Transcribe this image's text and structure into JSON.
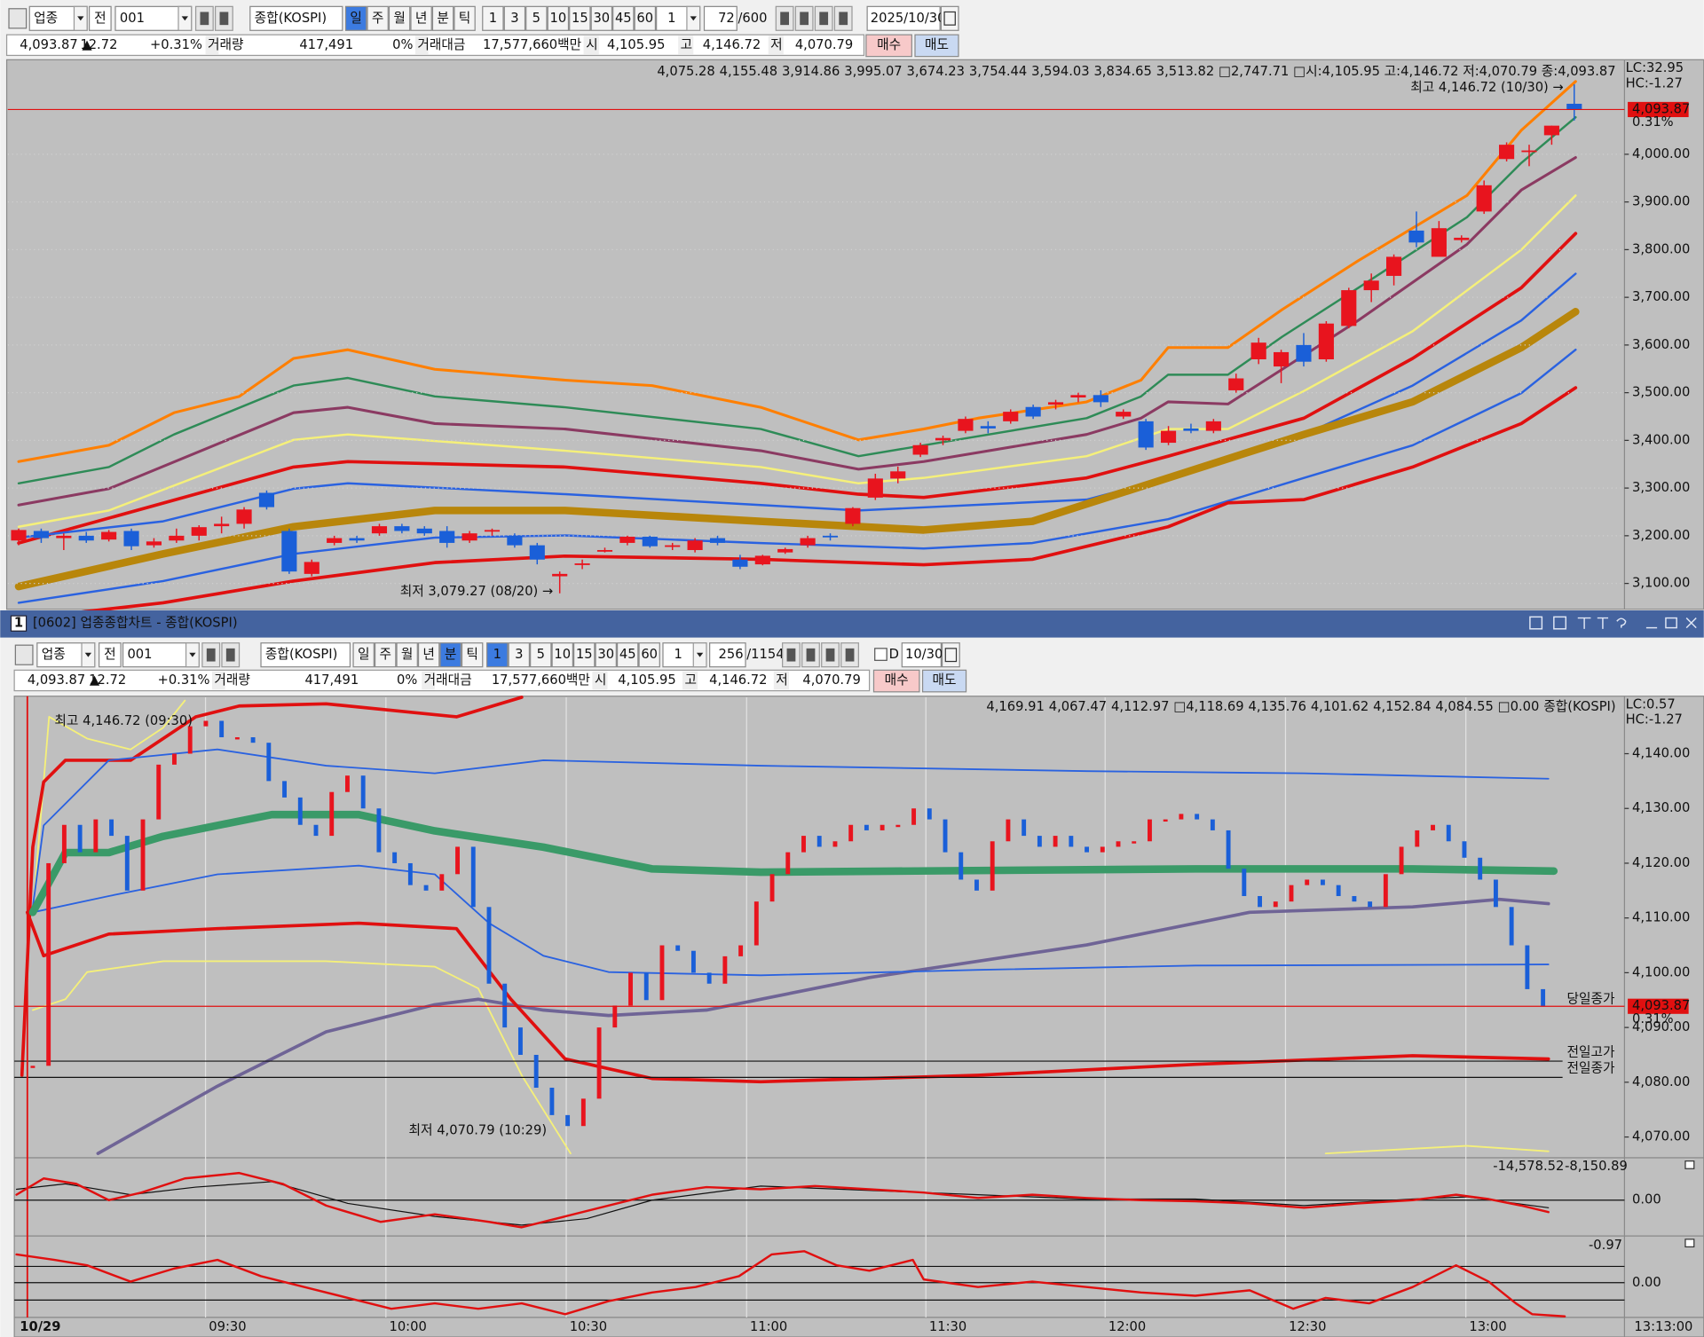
{
  "toolbar_top": {
    "market": "업종",
    "prev": "전",
    "code": "001",
    "name": "종합(KOSPI)",
    "periods": [
      "일",
      "주",
      "월",
      "년",
      "분",
      "틱"
    ],
    "intervals": [
      "1",
      "3",
      "5",
      "10",
      "15",
      "30",
      "45",
      "60"
    ],
    "multiplier": "1",
    "count": "72",
    "total": "/600",
    "date": "2025/10/30"
  },
  "quote_top": {
    "price": "4,093.87 ▲",
    "change": "12.72",
    "change_pct": "+0.31%",
    "volume_label": "거래량",
    "volume": "417,491",
    "volume_pct": "0%",
    "amount_label": "거래대금",
    "amount": "17,577,660백만",
    "open_label": "시",
    "open": "4,105.95",
    "high_label": "고",
    "high": "4,146.72",
    "low_label": "저",
    "low": "4,070.79",
    "buy": "매수",
    "sell": "매도"
  },
  "daily_chart": {
    "legend": [
      {
        "text": "4,075.28",
        "color": "#2e8b57"
      },
      {
        "text": "4,155.48",
        "color": "#ff7f00"
      },
      {
        "text": "3,914.86",
        "color": "#f5f07a"
      },
      {
        "text": "3,995.07",
        "color": "#8b3a62"
      },
      {
        "text": "3,674.23",
        "color": "#b8860b"
      },
      {
        "text": "3,754.44",
        "color": "#2060e0"
      },
      {
        "text": "3,594.03",
        "color": "#2060e0"
      },
      {
        "text": "3,834.65",
        "color": "#e01010"
      },
      {
        "text": "3,513.82",
        "color": "#e01010"
      },
      {
        "text": "□2,747.71",
        "color": "#2060e0"
      },
      {
        "text": "□시:4,105.95 고:4,146.72 저:4,070.79 종:4,093.87",
        "color": "#222222"
      }
    ],
    "lc": "LC:32.95",
    "hc": "HC:-1.27",
    "high_note": "최고 4,146.72 (10/30) →",
    "low_note": "최저 3,079.27 (08/20) →",
    "current": "4,093.87",
    "current_pct": "0.31%",
    "up_color": "#e8141e",
    "down_color": "#1a5fd8",
    "ylim": [
      3048,
      4196
    ],
    "yticks": [
      {
        "value": 3100,
        "label": "3,100.00"
      },
      {
        "value": 3200,
        "label": "3,200.00"
      },
      {
        "value": 3300,
        "label": "3,300.00"
      },
      {
        "value": 3400,
        "label": "3,400.00"
      },
      {
        "value": 3500,
        "label": "3,500.00"
      },
      {
        "value": 3600,
        "label": "3,600.00"
      },
      {
        "value": 3700,
        "label": "3,700.00"
      },
      {
        "value": 3800,
        "label": "3,800.00"
      },
      {
        "value": 3900,
        "label": "3,900.00"
      },
      {
        "value": 4000,
        "label": "4,000.00"
      }
    ],
    "candles": [
      [
        3190,
        3215,
        3180,
        3212
      ],
      [
        3210,
        3215,
        3185,
        3195
      ],
      [
        3195,
        3205,
        3170,
        3200
      ],
      [
        3200,
        3208,
        3185,
        3190
      ],
      [
        3192,
        3212,
        3188,
        3208
      ],
      [
        3210,
        3215,
        3170,
        3178
      ],
      [
        3180,
        3195,
        3175,
        3188
      ],
      [
        3190,
        3215,
        3185,
        3200
      ],
      [
        3200,
        3222,
        3190,
        3218
      ],
      [
        3220,
        3240,
        3205,
        3225
      ],
      [
        3225,
        3260,
        3215,
        3255
      ],
      [
        3290,
        3295,
        3255,
        3260
      ],
      [
        3210,
        3215,
        3120,
        3125
      ],
      [
        3120,
        3150,
        3115,
        3145
      ],
      [
        3185,
        3200,
        3180,
        3195
      ],
      [
        3195,
        3200,
        3185,
        3190
      ],
      [
        3205,
        3225,
        3200,
        3220
      ],
      [
        3220,
        3225,
        3205,
        3210
      ],
      [
        3215,
        3220,
        3200,
        3205
      ],
      [
        3210,
        3220,
        3175,
        3185
      ],
      [
        3190,
        3210,
        3185,
        3205
      ],
      [
        3210,
        3215,
        3200,
        3212
      ],
      [
        3200,
        3205,
        3175,
        3180
      ],
      [
        3180,
        3185,
        3140,
        3150
      ],
      [
        3115,
        3125,
        3079.27,
        3120
      ],
      [
        3140,
        3150,
        3130,
        3142
      ],
      [
        3170,
        3175,
        3165,
        3170
      ],
      [
        3185,
        3200,
        3180,
        3198
      ],
      [
        3198,
        3200,
        3175,
        3178
      ],
      [
        3180,
        3185,
        3170,
        3180
      ],
      [
        3170,
        3195,
        3165,
        3190
      ],
      [
        3195,
        3200,
        3180,
        3185
      ],
      [
        3150,
        3160,
        3130,
        3135
      ],
      [
        3140,
        3160,
        3138,
        3158
      ],
      [
        3165,
        3175,
        3162,
        3172
      ],
      [
        3180,
        3200,
        3175,
        3195
      ],
      [
        3200,
        3205,
        3190,
        3198
      ],
      [
        3225,
        3260,
        3220,
        3258
      ],
      [
        3280,
        3330,
        3275,
        3320
      ],
      [
        3320,
        3345,
        3310,
        3335
      ],
      [
        3370,
        3395,
        3365,
        3390
      ],
      [
        3400,
        3410,
        3390,
        3405
      ],
      [
        3420,
        3450,
        3415,
        3445
      ],
      [
        3430,
        3440,
        3415,
        3425
      ],
      [
        3440,
        3465,
        3435,
        3460
      ],
      [
        3470,
        3475,
        3445,
        3450
      ],
      [
        3475,
        3485,
        3465,
        3480
      ],
      [
        3490,
        3500,
        3480,
        3495
      ],
      [
        3495,
        3505,
        3470,
        3480
      ],
      [
        3450,
        3465,
        3445,
        3460
      ],
      [
        3440,
        3445,
        3380,
        3385
      ],
      [
        3395,
        3430,
        3390,
        3420
      ],
      [
        3425,
        3435,
        3415,
        3420
      ],
      [
        3420,
        3445,
        3415,
        3440
      ],
      [
        3505,
        3540,
        3500,
        3530
      ],
      [
        3570,
        3615,
        3560,
        3605
      ],
      [
        3555,
        3590,
        3520,
        3585
      ],
      [
        3600,
        3625,
        3555,
        3565
      ],
      [
        3570,
        3650,
        3565,
        3645
      ],
      [
        3640,
        3720,
        3635,
        3715
      ],
      [
        3715,
        3750,
        3690,
        3735
      ],
      [
        3745,
        3790,
        3725,
        3785
      ],
      [
        3840,
        3880,
        3805,
        3815
      ],
      [
        3785,
        3860,
        3790,
        3845
      ],
      [
        3820,
        3830,
        3815,
        3825
      ],
      [
        3880,
        3945,
        3875,
        3935
      ],
      [
        3990,
        4025,
        3985,
        4020
      ],
      [
        4005,
        4020,
        3975,
        4008
      ],
      [
        4040,
        4060,
        4020,
        4060
      ],
      [
        4105.95,
        4146.72,
        4070.79,
        4093.87
      ]
    ]
  },
  "window": {
    "number": "1",
    "title": "[0602] 업종종합차트 - 종합(KOSPI)"
  },
  "toolbar_bottom": {
    "market": "업종",
    "prev": "전",
    "code": "001",
    "name": "종합(KOSPI)",
    "periods": [
      "일",
      "주",
      "월",
      "년",
      "분",
      "틱"
    ],
    "intervals": [
      "1",
      "3",
      "5",
      "10",
      "15",
      "30",
      "45",
      "60"
    ],
    "multiplier": "1",
    "count": "256",
    "total": "/1154",
    "check": "D",
    "date": "10/30"
  },
  "quote_bottom": {
    "price": "4,093.87 ▲",
    "change": "12.72",
    "change_pct": "+0.31%",
    "volume_label": "거래량",
    "volume": "417,491",
    "volume_pct": "0%",
    "amount_label": "거래대금",
    "amount": "17,577,660백만",
    "open_label": "시",
    "open": "4,105.95",
    "high_label": "고",
    "high": "4,146.72",
    "low_label": "저",
    "low": "4,070.79",
    "buy": "매수",
    "sell": "매도"
  },
  "minute_chart": {
    "legend": [
      {
        "text": "4,169.91",
        "color": "#f0f080"
      },
      {
        "text": "4,067.47",
        "color": "#f0f080"
      },
      {
        "text": "4,112.97",
        "color": "#6a5a90"
      },
      {
        "text": "□4,118.69",
        "color": "#2e8b57"
      },
      {
        "text": "4,135.76",
        "color": "#2060e0"
      },
      {
        "text": "4,101.62",
        "color": "#2060e0"
      },
      {
        "text": "4,152.84",
        "color": "#e01010"
      },
      {
        "text": "4,084.55",
        "color": "#e01010"
      },
      {
        "text": "□0.00",
        "color": "#2e8b57"
      },
      {
        "text": "종합(KOSPI)",
        "color": "#222222"
      }
    ],
    "lc": "LC:0.57",
    "hc": "HC:-1.27",
    "high_note": "최고 4,146.72 (09:30)",
    "low_note": "최저 4,070.79 (10:29)",
    "today_close": "당일종가",
    "prev_high": "전일고가",
    "prev_close": "전일종가",
    "current": "4,093.87",
    "current_pct": "0.31%",
    "up_color": "#e8141e",
    "down_color": "#1a5fd8",
    "ylim": [
      4066.4,
      4150.3
    ],
    "yticks": [
      {
        "value": 4070,
        "label": "4,070.00"
      },
      {
        "value": 4080,
        "label": "4,080.00"
      },
      {
        "value": 4090,
        "label": "4,090.00"
      },
      {
        "value": 4100,
        "label": "4,100.00"
      },
      {
        "value": 4110,
        "label": "4,110.00"
      },
      {
        "value": 4120,
        "label": "4,120.00"
      },
      {
        "value": 4130,
        "label": "4,130.00"
      },
      {
        "value": 4140,
        "label": "4,140.00"
      }
    ],
    "closes": [
      4083,
      4120,
      4127,
      4122,
      4128,
      4125,
      4115,
      4128,
      4138,
      4140,
      4145,
      4146,
      4143,
      4143,
      4142,
      4135,
      4132,
      4127,
      4125,
      4133,
      4136,
      4130,
      4122,
      4120,
      4116,
      4115,
      4118,
      4123,
      4112,
      4098,
      4090,
      4085,
      4079,
      4074,
      4072,
      4077,
      4090,
      4094,
      4100,
      4095,
      4105,
      4104,
      4100,
      4098,
      4103,
      4105,
      4113,
      4118,
      4122,
      4125,
      4123,
      4124,
      4127,
      4126,
      4127,
      4127,
      4130,
      4128,
      4122,
      4117,
      4115,
      4124,
      4128,
      4125,
      4123,
      4125,
      4123,
      4122,
      4123,
      4124,
      4124,
      4128,
      4128,
      4129,
      4128,
      4126,
      4119,
      4114,
      4112,
      4113,
      4116,
      4117,
      4116,
      4114,
      4113,
      4112,
      4118,
      4123,
      4126,
      4127,
      4124,
      4121,
      4117,
      4112,
      4105,
      4097,
      4093.87
    ]
  },
  "oscillator_1": {
    "red_value": "-14,578.52",
    "black_value": "-8,150.89",
    "zero": "0.00"
  },
  "oscillator_2": {
    "red_value": "-0.97",
    "zero": "0.00"
  },
  "time_axis": {
    "labels": [
      "10/29",
      "09:30",
      "10:00",
      "10:30",
      "11:00",
      "11:30",
      "12:00",
      "12:30",
      "13:00"
    ],
    "current_time": "13:13:00"
  }
}
